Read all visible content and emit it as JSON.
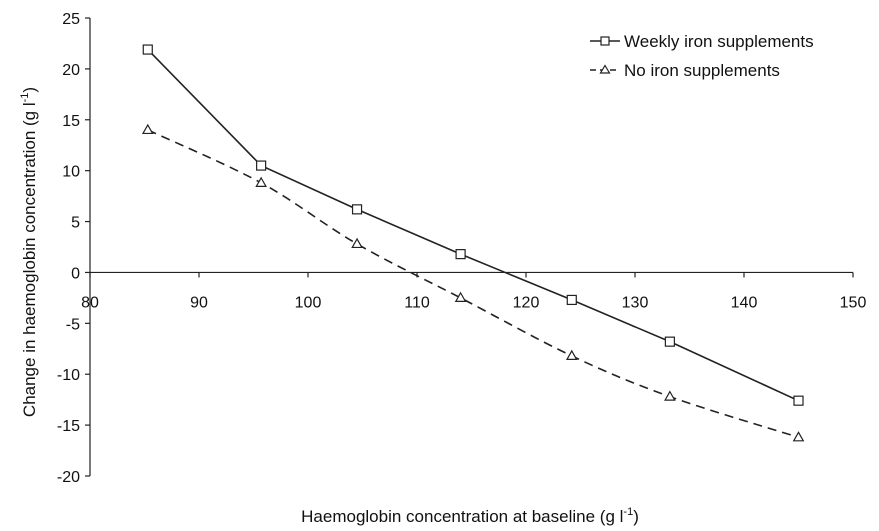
{
  "chart_data": {
    "type": "line",
    "title": "",
    "xlabel": "Haemoglobin concentration at baseline (g l",
    "xlabel_sup": "-1",
    "xlabel_end": ")",
    "ylabel": "Change in haemoglobin concentration (g l",
    "ylabel_sup": "-1",
    "ylabel_end": ")",
    "xlim": [
      80,
      150
    ],
    "ylim": [
      -20,
      25
    ],
    "xticks": [
      "80",
      "90",
      "100",
      "110",
      "120",
      "130",
      "140",
      "150"
    ],
    "yticks": [
      "25",
      "20",
      "15",
      "10",
      "5",
      "0",
      "-5",
      "-10",
      "-15",
      "-20"
    ],
    "xtick_values": [
      80,
      90,
      100,
      110,
      120,
      130,
      140,
      150
    ],
    "ytick_values": [
      25,
      20,
      15,
      10,
      5,
      0,
      -5,
      -10,
      -15,
      -20
    ],
    "grid": false,
    "legend_position": "top-right",
    "series": [
      {
        "name": "Weekly iron supplements",
        "marker": "square",
        "line_style": "solid",
        "color": "#222222",
        "x": [
          85.3,
          95.7,
          104.5,
          114.0,
          124.2,
          133.2,
          145.0
        ],
        "y": [
          21.9,
          10.5,
          6.2,
          1.8,
          -2.7,
          -6.8,
          -12.6
        ]
      },
      {
        "name": "No iron supplements",
        "marker": "triangle",
        "line_style": "dashed",
        "color": "#222222",
        "x": [
          85.3,
          95.7,
          104.5,
          114.0,
          124.2,
          133.2,
          145.0
        ],
        "y": [
          14.0,
          8.8,
          2.8,
          -2.5,
          -8.2,
          -12.2,
          -16.2
        ]
      }
    ]
  }
}
